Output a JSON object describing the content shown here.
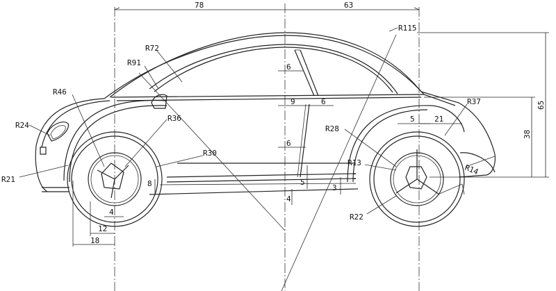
{
  "dimensions": {
    "top_left": "78",
    "top_right": "63",
    "right_height": "65",
    "right_mid": "38",
    "d6_a": "6",
    "d9": "9",
    "d6_b": "6",
    "d6_c": "6",
    "d5_a": "5",
    "d3": "3",
    "d4_a": "4",
    "d8": "8",
    "d4_b": "4",
    "d12": "12",
    "d18": "18",
    "d5_b": "5",
    "d21": "21"
  },
  "radii": {
    "r115": "R115",
    "r72": "R72",
    "r91": "R91",
    "r46": "R46",
    "r24": "R24",
    "r36": "R36",
    "r30": "R30",
    "r21": "R21",
    "r37": "R37",
    "r28": "R28",
    "r13": "R13",
    "r14": "R14",
    "r22": "R22"
  }
}
